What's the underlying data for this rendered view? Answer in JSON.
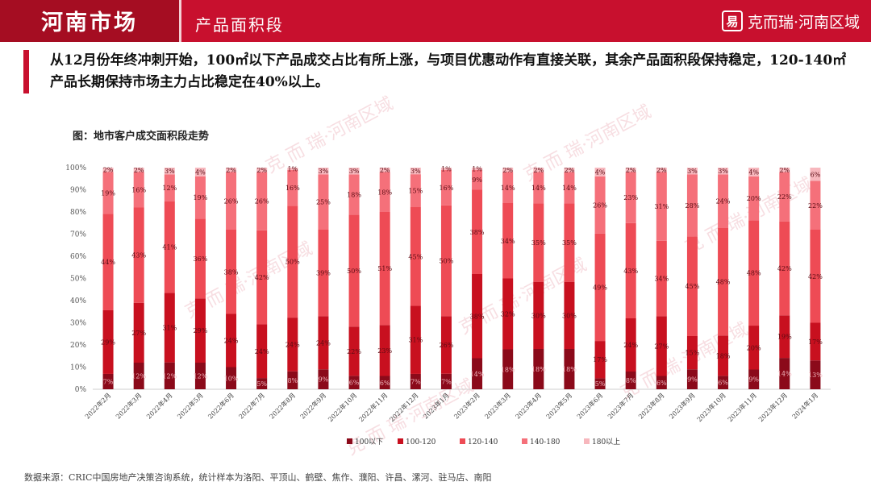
{
  "header": {
    "title": "河南市场",
    "subtitle": "产品面积段",
    "brand": "克而瑞·河南区域",
    "brand_logo": "易"
  },
  "summary": "从12月份年终冲刺开始，100㎡以下产品成交占比有所上涨，与项目优惠动作有直接关联，其余产品面积段保持稳定，120-140㎡产品长期保持市场主力占比稳定在40%以上。",
  "chart_caption": "图：地市客户成交面积段走势",
  "footer": "数据来源：CRIC中国房地产决策咨询系统，统计样本为洛阳、平顶山、鹤壁、焦作、濮阳、许昌、漯河、驻马店、南阳",
  "watermark_text": "克 而 瑞·河南区域",
  "colors": {
    "header": "#c8102e",
    "s1": "#8b0a1a",
    "s2": "#c8101f",
    "s3": "#ee4b55",
    "s4": "#f5707a",
    "s5": "#f7b7bd"
  },
  "chart_data": {
    "type": "bar",
    "stacked": true,
    "percent": true,
    "categories": [
      "2022年2月",
      "2022年3月",
      "2022年4月",
      "2022年5月",
      "2022年6月",
      "2022年7月",
      "2022年8月",
      "2022年9月",
      "2022年10月",
      "2022年11月",
      "2022年12月",
      "2023年1月",
      "2023年2月",
      "2023年3月",
      "2023年4月",
      "2023年5月",
      "2023年6月",
      "2023年7月",
      "2023年8月",
      "2023年9月",
      "2023年10月",
      "2023年11月",
      "2023年12月",
      "2024年1月"
    ],
    "series": [
      {
        "name": "100以下",
        "values": [
          7,
          12,
          12,
          12,
          10,
          5,
          8,
          9,
          6,
          6,
          7,
          7,
          14,
          18,
          18,
          18,
          5,
          8,
          6,
          9,
          6,
          9,
          14,
          13
        ]
      },
      {
        "name": "100-120",
        "values": [
          29,
          27,
          31,
          29,
          24,
          24,
          24,
          24,
          22,
          23,
          31,
          26,
          38,
          32,
          30,
          30,
          17,
          24,
          27,
          15,
          18,
          20,
          19,
          17
        ]
      },
      {
        "name": "120-140",
        "values": [
          44,
          43,
          41,
          36,
          38,
          42,
          50,
          39,
          50,
          51,
          45,
          50,
          38,
          34,
          35,
          35,
          49,
          43,
          34,
          45,
          48,
          48,
          42,
          42
        ]
      },
      {
        "name": "140-180",
        "values": [
          19,
          16,
          12,
          19,
          26,
          26,
          16,
          25,
          18,
          18,
          15,
          16,
          9,
          14,
          14,
          14,
          26,
          23,
          31,
          28,
          24,
          20,
          22,
          22
        ]
      },
      {
        "name": "180以上",
        "values": [
          2,
          2,
          3,
          4,
          2,
          2,
          1,
          3,
          3,
          2,
          3,
          1,
          1,
          2,
          2,
          2,
          4,
          2,
          2,
          3,
          3,
          4,
          2,
          6
        ]
      }
    ],
    "ylim": [
      0,
      100
    ],
    "yticks": [
      "0%",
      "10%",
      "20%",
      "30%",
      "40%",
      "50%",
      "60%",
      "70%",
      "80%",
      "90%",
      "100%"
    ],
    "legend_position": "bottom",
    "grid": false
  }
}
